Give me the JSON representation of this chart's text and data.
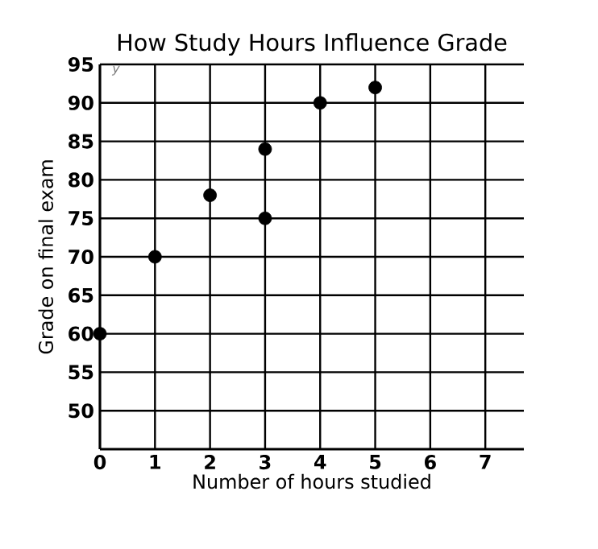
{
  "chart_data": {
    "type": "scatter",
    "title": "How Study Hours Influence Grade",
    "xlabel": "Number of hours studied",
    "ylabel": "Grade on final exam",
    "annotations": [
      "y"
    ],
    "x": [
      0,
      1,
      2,
      3,
      3,
      4,
      5
    ],
    "values": [
      60,
      70,
      78,
      84,
      75,
      90,
      92
    ],
    "color": "#000000",
    "marker": "circle",
    "grid": true,
    "xlim": [
      0,
      7.7
    ],
    "ylim": [
      45,
      95
    ],
    "xticks": [
      0,
      1,
      2,
      3,
      4,
      5,
      6,
      7
    ],
    "yticks": [
      50,
      55,
      60,
      65,
      70,
      75,
      80,
      85,
      90,
      95
    ]
  }
}
